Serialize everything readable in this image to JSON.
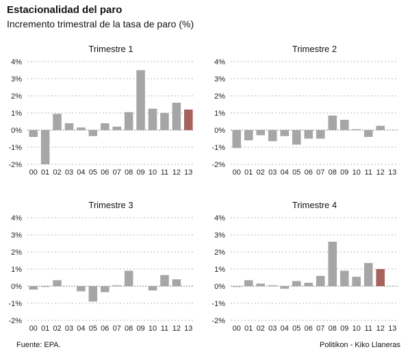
{
  "title": "Estacionalidad del paro",
  "subtitle": "Incremento trimestral de la tasa de paro (%)",
  "footer": {
    "source": "Fuente: EPA.",
    "credit": "Politikon - Kiko Llaneras"
  },
  "colors": {
    "bar": "#a6a6a6",
    "highlight": "#a8625c"
  },
  "chart_data": [
    {
      "type": "bar",
      "title": "Trimestre 1",
      "categories": [
        "00",
        "01",
        "02",
        "03",
        "04",
        "05",
        "06",
        "07",
        "08",
        "09",
        "10",
        "11",
        "12",
        "13"
      ],
      "values": [
        -0.4,
        -2.0,
        0.95,
        0.4,
        0.15,
        -0.35,
        0.4,
        0.2,
        1.05,
        3.5,
        1.25,
        1.0,
        1.6,
        1.2
      ],
      "highlight_index": 13,
      "ylim": [
        -2,
        4
      ],
      "yticks": [
        "-2%",
        "-1%",
        "0%",
        "1%",
        "2%",
        "3%",
        "4%"
      ]
    },
    {
      "type": "bar",
      "title": "Trimestre 2",
      "categories": [
        "00",
        "01",
        "02",
        "03",
        "04",
        "05",
        "06",
        "07",
        "08",
        "09",
        "10",
        "11",
        "12",
        "13"
      ],
      "values": [
        -1.05,
        -0.6,
        -0.3,
        -0.65,
        -0.35,
        -0.85,
        -0.5,
        -0.5,
        0.85,
        0.6,
        0.05,
        -0.4,
        0.25,
        null
      ],
      "highlight_index": null,
      "ylim": [
        -2,
        4
      ],
      "yticks": [
        "-2%",
        "-1%",
        "0%",
        "1%",
        "2%",
        "3%",
        "4%"
      ]
    },
    {
      "type": "bar",
      "title": "Trimestre 3",
      "categories": [
        "00",
        "01",
        "02",
        "03",
        "04",
        "05",
        "06",
        "07",
        "08",
        "09",
        "10",
        "11",
        "12",
        "13"
      ],
      "values": [
        -0.2,
        -0.05,
        0.35,
        0.0,
        -0.3,
        -0.9,
        -0.35,
        0.05,
        0.9,
        0.0,
        -0.25,
        0.65,
        0.4,
        null
      ],
      "highlight_index": null,
      "ylim": [
        -2,
        4
      ],
      "yticks": [
        "-2%",
        "-1%",
        "0%",
        "1%",
        "2%",
        "3%",
        "4%"
      ]
    },
    {
      "type": "bar",
      "title": "Trimestre 4",
      "categories": [
        "00",
        "01",
        "02",
        "03",
        "04",
        "05",
        "06",
        "07",
        "08",
        "09",
        "10",
        "11",
        "12",
        "13"
      ],
      "values": [
        -0.05,
        0.35,
        0.15,
        0.05,
        -0.15,
        0.3,
        0.2,
        0.6,
        2.6,
        0.9,
        0.55,
        1.35,
        1.0,
        null
      ],
      "highlight_index": 12,
      "ylim": [
        -2,
        4
      ],
      "yticks": [
        "-2%",
        "-1%",
        "0%",
        "1%",
        "2%",
        "3%",
        "4%"
      ]
    }
  ]
}
